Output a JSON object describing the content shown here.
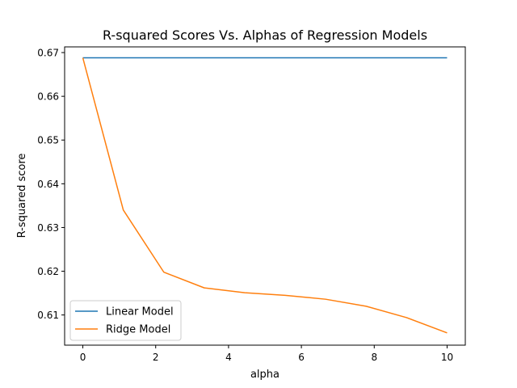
{
  "chart_data": {
    "type": "line",
    "title": "R-squared Scores Vs. Alphas of Regression Models",
    "xlabel": "alpha",
    "ylabel": "R-squared score",
    "xlim": [
      -0.5,
      10.5
    ],
    "ylim": [
      0.6031,
      0.6713
    ],
    "xticks": [
      0,
      2,
      4,
      6,
      8,
      10
    ],
    "xtick_labels": [
      "0",
      "2",
      "4",
      "6",
      "8",
      "10"
    ],
    "yticks": [
      0.61,
      0.62,
      0.63,
      0.64,
      0.65,
      0.66,
      0.67
    ],
    "ytick_labels": [
      "0.61",
      "0.62",
      "0.63",
      "0.64",
      "0.65",
      "0.66",
      "0.67"
    ],
    "grid": false,
    "legend_position": "lower-left",
    "series": [
      {
        "name": "Linear Model",
        "color": "#1f77b4",
        "x": [
          0,
          1.111,
          2.222,
          3.333,
          4.444,
          5.556,
          6.667,
          7.778,
          8.889,
          10
        ],
        "y": [
          0.6688,
          0.6688,
          0.6688,
          0.6688,
          0.6688,
          0.6688,
          0.6688,
          0.6688,
          0.6688,
          0.6688
        ]
      },
      {
        "name": "Ridge Model",
        "color": "#ff7f0e",
        "x": [
          0,
          1.111,
          2.222,
          3.333,
          4.444,
          5.556,
          6.667,
          7.778,
          8.889,
          10
        ],
        "y": [
          0.6688,
          0.634,
          0.6198,
          0.6162,
          0.6151,
          0.6145,
          0.6136,
          0.612,
          0.6094,
          0.6059
        ]
      }
    ]
  }
}
